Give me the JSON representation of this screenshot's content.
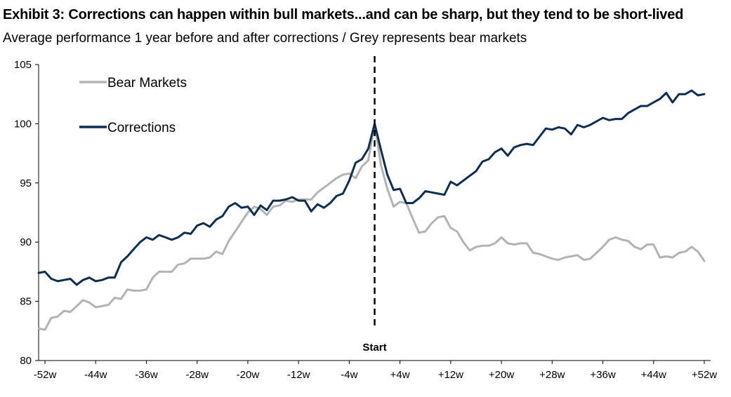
{
  "header": {
    "title": "Exhibit 3: Corrections can happen within bull markets...and can be sharp, but they tend to be short-lived",
    "subtitle": "Average performance 1 year before and after corrections / Grey represents bear markets"
  },
  "chart_data": {
    "type": "line",
    "title": "Exhibit 3: Corrections can happen within bull markets...and can be sharp, but they tend to be short-lived",
    "subtitle": "Average performance 1 year before and after corrections / Grey represents bear markets",
    "xlabel": "",
    "ylabel": "",
    "ylim": [
      80,
      105
    ],
    "yticks": [
      80,
      85,
      90,
      95,
      100,
      105
    ],
    "xlim": [
      -53,
      53
    ],
    "xticks": [
      -52,
      -44,
      -36,
      -28,
      -20,
      -12,
      -4,
      4,
      12,
      20,
      28,
      36,
      44,
      52
    ],
    "xtick_labels": [
      "-52w",
      "-44w",
      "-36w",
      "-28w",
      "-20w",
      "-12w",
      "-4w",
      "+4w",
      "+12w",
      "+20w",
      "+28w",
      "+36w",
      "+44w",
      "+52w"
    ],
    "legend_position": "top-left",
    "annotation": {
      "text": "Start",
      "x": 0
    },
    "series": [
      {
        "name": "Bear Markets",
        "color": "#b3b3b3",
        "x": [
          -53,
          -52,
          -51,
          -50,
          -49,
          -48,
          -47,
          -46,
          -45,
          -44,
          -43,
          -42,
          -41,
          -40,
          -39,
          -38,
          -37,
          -36,
          -35,
          -34,
          -33,
          -32,
          -31,
          -30,
          -29,
          -28,
          -27,
          -26,
          -25,
          -24,
          -23,
          -22,
          -21,
          -20,
          -19,
          -18,
          -17,
          -16,
          -15,
          -14,
          -13,
          -12,
          -11,
          -10,
          -9,
          -8,
          -7,
          -6,
          -5,
          -4,
          -3,
          -2,
          -1,
          0,
          1,
          2,
          3,
          4,
          5,
          6,
          7,
          8,
          9,
          10,
          11,
          12,
          13,
          14,
          15,
          16,
          17,
          18,
          19,
          20,
          21,
          22,
          23,
          24,
          25,
          26,
          27,
          28,
          29,
          30,
          31,
          32,
          33,
          34,
          35,
          36,
          37,
          38,
          39,
          40,
          41,
          42,
          43,
          44,
          45,
          46,
          47,
          48,
          49,
          50,
          51,
          52
        ],
        "values": [
          82.7,
          82.6,
          83.6,
          83.7,
          84.2,
          84.1,
          84.6,
          85.1,
          84.9,
          84.5,
          84.6,
          84.7,
          85.3,
          85.2,
          86.0,
          85.9,
          85.9,
          86.0,
          87.0,
          87.5,
          87.5,
          87.5,
          88.1,
          88.2,
          88.6,
          88.6,
          88.6,
          88.7,
          89.2,
          89.0,
          90.1,
          90.9,
          91.7,
          92.5,
          93.0,
          92.8,
          92.3,
          93.0,
          93.1,
          93.5,
          93.4,
          93.6,
          93.6,
          93.6,
          94.2,
          94.6,
          95.0,
          95.4,
          95.7,
          95.8,
          95.4,
          96.4,
          96.9,
          100.0,
          96.5,
          94.5,
          93.0,
          93.4,
          93.3,
          92.0,
          90.8,
          90.9,
          91.6,
          92.1,
          92.2,
          91.2,
          90.9,
          90.0,
          89.3,
          89.6,
          89.7,
          89.7,
          89.9,
          90.4,
          89.9,
          89.8,
          89.9,
          89.9,
          89.1,
          89.0,
          88.8,
          88.6,
          88.5,
          88.7,
          88.8,
          88.9,
          88.5,
          88.6,
          89.1,
          89.6,
          90.2,
          90.4,
          90.2,
          90.1,
          89.6,
          89.4,
          89.8,
          89.8,
          88.7,
          88.8,
          88.7,
          89.1,
          89.2,
          89.6,
          89.2,
          88.4
        ]
      },
      {
        "name": "Corrections",
        "color": "#0f2d52",
        "x": [
          -53,
          -52,
          -51,
          -50,
          -49,
          -48,
          -47,
          -46,
          -45,
          -44,
          -43,
          -42,
          -41,
          -40,
          -39,
          -38,
          -37,
          -36,
          -35,
          -34,
          -33,
          -32,
          -31,
          -30,
          -29,
          -28,
          -27,
          -26,
          -25,
          -24,
          -23,
          -22,
          -21,
          -20,
          -19,
          -18,
          -17,
          -16,
          -15,
          -14,
          -13,
          -12,
          -11,
          -10,
          -9,
          -8,
          -7,
          -6,
          -5,
          -4,
          -3,
          -2,
          -1,
          0,
          1,
          2,
          3,
          4,
          5,
          6,
          7,
          8,
          9,
          10,
          11,
          12,
          13,
          14,
          15,
          16,
          17,
          18,
          19,
          20,
          21,
          22,
          23,
          24,
          25,
          26,
          27,
          28,
          29,
          30,
          31,
          32,
          33,
          34,
          35,
          36,
          37,
          38,
          39,
          40,
          41,
          42,
          43,
          44,
          45,
          46,
          47,
          48,
          49,
          50,
          51,
          52
        ],
        "values": [
          87.4,
          87.5,
          86.9,
          86.7,
          86.8,
          86.9,
          86.4,
          86.8,
          87.0,
          86.7,
          86.8,
          87.0,
          87.0,
          88.3,
          88.8,
          89.4,
          90.0,
          90.4,
          90.2,
          90.6,
          90.4,
          90.2,
          90.4,
          90.8,
          90.7,
          91.4,
          91.6,
          91.3,
          91.9,
          92.2,
          93.0,
          93.3,
          92.9,
          93.0,
          92.3,
          93.1,
          92.7,
          93.5,
          93.5,
          93.6,
          93.8,
          93.5,
          93.5,
          92.6,
          93.2,
          92.9,
          93.3,
          93.9,
          94.1,
          95.2,
          96.7,
          97.0,
          97.9,
          100.0,
          97.8,
          95.7,
          94.4,
          94.5,
          93.3,
          93.3,
          93.7,
          94.3,
          94.2,
          94.1,
          94.0,
          95.1,
          94.8,
          95.2,
          95.6,
          96.0,
          96.8,
          97.0,
          97.6,
          97.9,
          97.3,
          98.0,
          98.2,
          98.3,
          98.2,
          98.9,
          99.6,
          99.5,
          99.7,
          99.6,
          99.1,
          99.9,
          99.7,
          99.9,
          100.2,
          100.5,
          100.3,
          100.4,
          100.4,
          100.9,
          101.2,
          101.5,
          101.5,
          101.8,
          102.1,
          102.6,
          101.8,
          102.5,
          102.5,
          102.8,
          102.4,
          102.5
        ]
      }
    ]
  }
}
